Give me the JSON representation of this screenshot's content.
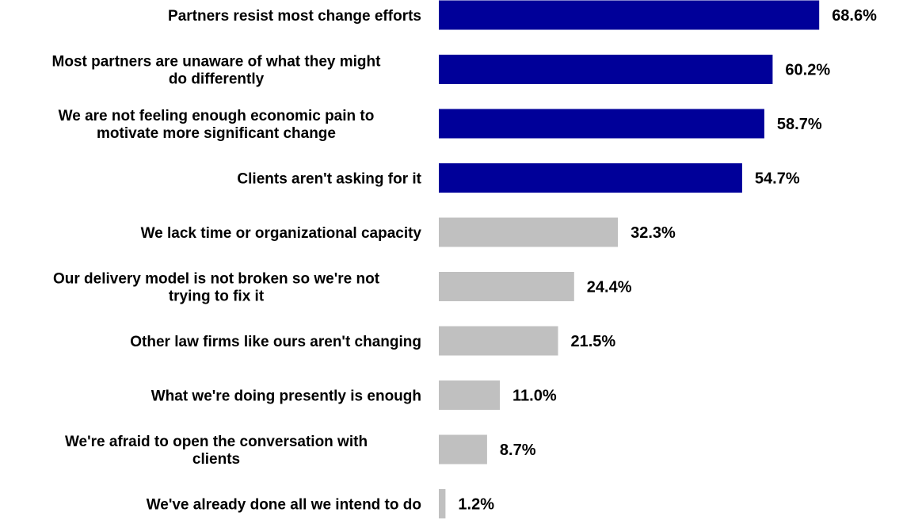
{
  "chart_data": {
    "type": "bar",
    "orientation": "horizontal",
    "title": "",
    "xlabel": "",
    "ylabel": "",
    "grid": false,
    "legend": "none",
    "categories": [
      [
        "Partners resist most change efforts"
      ],
      [
        "Most partners are unaware of what they might",
        "do differently"
      ],
      [
        "We are not feeling enough economic pain to",
        "motivate more significant change"
      ],
      [
        "Clients aren't asking for it"
      ],
      [
        "We lack time or organizational capacity"
      ],
      [
        "Our delivery model is not broken so we're not",
        "trying to fix it"
      ],
      [
        "Other law firms like ours aren't changing"
      ],
      [
        "What we're doing presently is enough"
      ],
      [
        "We're afraid to open the conversation with",
        "clients"
      ],
      [
        "We've already done all we intend to do"
      ]
    ],
    "values": [
      68.6,
      60.2,
      58.7,
      54.7,
      32.3,
      24.4,
      21.5,
      11.0,
      8.7,
      1.2
    ],
    "value_labels": [
      "68.6%",
      "60.2%",
      "58.7%",
      "54.7%",
      "32.3%",
      "24.4%",
      "21.5%",
      "11.0%",
      "8.7%",
      "1.2%"
    ],
    "highlight": [
      true,
      true,
      true,
      true,
      false,
      false,
      false,
      false,
      false,
      false
    ],
    "xlim": [
      0,
      70
    ],
    "colors": {
      "highlight": "#000099",
      "default": "#c0c0c0"
    }
  }
}
